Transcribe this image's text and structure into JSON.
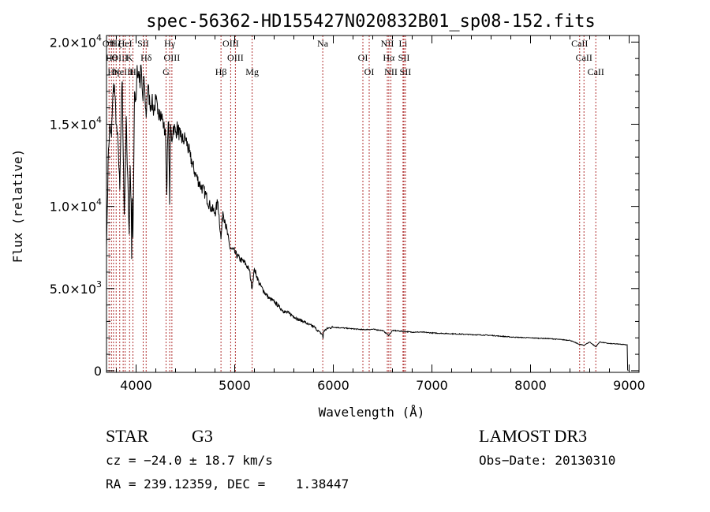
{
  "chart_data": {
    "type": "line",
    "title": "spec-56362-HD155427N020832B01_sp08-152.fits",
    "xlabel": "Wavelength (Å)",
    "ylabel": "Flux (relative)",
    "xlim": [
      3700,
      9100
    ],
    "ylim": [
      -100,
      20400
    ],
    "x_ticks": [
      4000,
      5000,
      6000,
      7000,
      8000,
      9000
    ],
    "x_tick_labels": [
      "4000",
      "5000",
      "6000",
      "7000",
      "8000",
      "9000"
    ],
    "y_ticks": [
      {
        "value": 0,
        "mantissa": "0",
        "exponent": ""
      },
      {
        "value": 5000,
        "mantissa": "5.0×10",
        "exponent": "3"
      },
      {
        "value": 10000,
        "mantissa": "1.0×10",
        "exponent": "4"
      },
      {
        "value": 15000,
        "mantissa": "1.5×10",
        "exponent": "4"
      },
      {
        "value": 20000,
        "mantissa": "2.0×10",
        "exponent": "4"
      }
    ],
    "series": [
      {
        "name": "flux",
        "color": "#000000",
        "x": [
          3700,
          3720,
          3735,
          3750,
          3765,
          3780,
          3800,
          3820,
          3835,
          3850,
          3860,
          3870,
          3880,
          3890,
          3900,
          3910,
          3920,
          3930,
          3940,
          3950,
          3955,
          3960,
          3968,
          3975,
          3985,
          4000,
          4010,
          4020,
          4030,
          4040,
          4050,
          4060,
          4070,
          4080,
          4090,
          4102,
          4110,
          4120,
          4140,
          4160,
          4180,
          4200,
          4220,
          4240,
          4260,
          4280,
          4300,
          4310,
          4320,
          4330,
          4340,
          4350,
          4360,
          4380,
          4400,
          4420,
          4450,
          4480,
          4500,
          4550,
          4600,
          4650,
          4700,
          4750,
          4800,
          4830,
          4861,
          4880,
          4900,
          4950,
          5000,
          5050,
          5100,
          5150,
          5175,
          5200,
          5250,
          5300,
          5350,
          5400,
          5450,
          5500,
          5550,
          5600,
          5650,
          5700,
          5750,
          5800,
          5850,
          5890,
          5896,
          5900,
          5950,
          6000,
          6100,
          6200,
          6300,
          6400,
          6500,
          6563,
          6600,
          6700,
          6800,
          6900,
          7000,
          7200,
          7400,
          7600,
          7800,
          8000,
          8200,
          8400,
          8498,
          8542,
          8600,
          8662,
          8700,
          8800,
          8900,
          8980,
          8985,
          8990
        ],
        "values": [
          7500,
          13500,
          15000,
          14200,
          16800,
          17400,
          15000,
          13500,
          11000,
          15800,
          17600,
          13000,
          9500,
          12000,
          15500,
          12500,
          10800,
          8300,
          12500,
          10200,
          6800,
          10500,
          8100,
          11500,
          17000,
          16500,
          18600,
          17800,
          18200,
          17200,
          18600,
          17300,
          16400,
          17900,
          16700,
          15400,
          16700,
          17300,
          16200,
          16400,
          15800,
          16500,
          15600,
          15900,
          15500,
          14900,
          14200,
          10700,
          14000,
          15100,
          10100,
          15000,
          14000,
          14900,
          14500,
          14800,
          14200,
          14000,
          14200,
          13000,
          12000,
          11300,
          10800,
          10000,
          9600,
          10300,
          8000,
          9700,
          9200,
          7500,
          7200,
          6800,
          6600,
          6100,
          5000,
          6200,
          5300,
          4800,
          4400,
          4200,
          3900,
          3600,
          3500,
          3300,
          3100,
          3000,
          2800,
          2700,
          2400,
          2200,
          1950,
          2400,
          2600,
          2650,
          2600,
          2550,
          2500,
          2520,
          2450,
          2150,
          2450,
          2400,
          2350,
          2350,
          2300,
          2250,
          2200,
          2150,
          2050,
          2000,
          1950,
          1850,
          1600,
          1550,
          1750,
          1450,
          1750,
          1650,
          1620,
          1580,
          50,
          0
        ]
      }
    ],
    "line_markers": [
      {
        "x": 3726,
        "label": "OII"
      },
      {
        "x": 3750,
        "label": "Hθ"
      },
      {
        "x": 3771,
        "label": "Hη"
      },
      {
        "x": 3798,
        "label": "Hζ"
      },
      {
        "x": 3834,
        "label": "OIII"
      },
      {
        "x": 3869,
        "label": "NeIII"
      },
      {
        "x": 3889,
        "label": "HeI"
      },
      {
        "x": 3934,
        "label": "K"
      },
      {
        "x": 3968,
        "label": "H"
      },
      {
        "x": 4072,
        "label": "SII"
      },
      {
        "x": 4102,
        "label": "Hδ"
      },
      {
        "x": 4304,
        "label": "G"
      },
      {
        "x": 4341,
        "label": "Hγ"
      },
      {
        "x": 4363,
        "label": "OIII"
      },
      {
        "x": 4861,
        "label": "Hβ"
      },
      {
        "x": 4959,
        "label": "OIII"
      },
      {
        "x": 5007,
        "label": "OIII"
      },
      {
        "x": 5177,
        "label": "Mg"
      },
      {
        "x": 5893,
        "label": "Na"
      },
      {
        "x": 6300,
        "label": "OI"
      },
      {
        "x": 6364,
        "label": "OI"
      },
      {
        "x": 6548,
        "label": "NII"
      },
      {
        "x": 6563,
        "label": "Hα"
      },
      {
        "x": 6584,
        "label": "NII"
      },
      {
        "x": 6707,
        "label": "Li"
      },
      {
        "x": 6716,
        "label": "SII"
      },
      {
        "x": 6731,
        "label": "SII"
      },
      {
        "x": 8498,
        "label": "CaII"
      },
      {
        "x": 8542,
        "label": "CaII"
      },
      {
        "x": 8662,
        "label": "CaII"
      }
    ],
    "marker_color": "#b03030"
  },
  "info": {
    "object_class": "STAR",
    "subclass": "G3",
    "survey": "LAMOST DR3",
    "redshift_text": "cz = −24.0 ± 18.7 km/s",
    "obs_date_text": "Obs−Date: 20130310",
    "coords_text": "RA = 239.12359, DEC =    1.38447"
  }
}
